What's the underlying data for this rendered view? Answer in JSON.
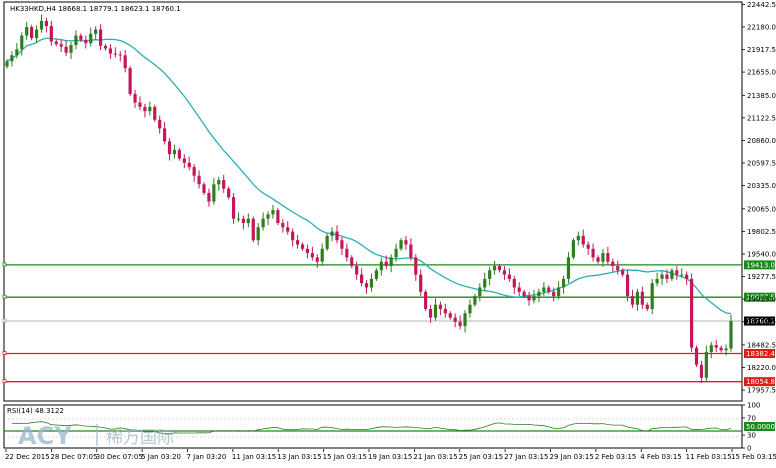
{
  "header": {
    "symbol": "HK33HKD,H4",
    "quote": "18668.1 18779.1 18623.1 18760.1"
  },
  "colors": {
    "bull": "#2e7d1f",
    "bear": "#c2185b",
    "ma": "#26b0b5",
    "support_green": "#1a8a1a",
    "resist_red": "#e01b1b",
    "rsi": "#2e7d1f"
  },
  "chart_data": [
    {
      "type": "candlestick",
      "title": "HK33HKD,H4",
      "ohlc_last": [
        18668.1,
        18779.1,
        18623.1,
        18760.1
      ],
      "ylim": [
        17830,
        22470
      ],
      "y_ticks": [
        "22442.5",
        "22180.0",
        "21917.5",
        "21655.0",
        "21385.0",
        "21122.5",
        "20860.0",
        "20597.5",
        "20335.0",
        "20065.0",
        "19802.5",
        "19540.0",
        "19277.5",
        "19015.0",
        "18752.5",
        "18482.5",
        "18220.0",
        "17957.5"
      ],
      "x_ticks": [
        "22 Dec 2015",
        "28 Dec 07:05",
        "30 Dec 07:05",
        "5 Jan 03:20",
        "7 Jan 03:20",
        "11 Jan 03:15",
        "13 Jan 03:15",
        "15 Jan 03:15",
        "19 Jan 03:15",
        "21 Jan 03:15",
        "25 Jan 03:15",
        "27 Jan 03:15",
        "29 Jan 03:15",
        "2 Feb 03:15",
        "4 Feb 03:15",
        "11 Feb 03:15",
        "15 Feb 03:15"
      ],
      "levels": [
        {
          "value": 19413.0,
          "label": "19413.0",
          "color": "green"
        },
        {
          "value": 19037.5,
          "label": "19037.5",
          "color": "green"
        },
        {
          "value": 18760.1,
          "label": "18760.1",
          "color": "black"
        },
        {
          "value": 18382.4,
          "label": "18382.4",
          "color": "red"
        },
        {
          "value": 18054.8,
          "label": "18054.8",
          "color": "red"
        }
      ],
      "close": [
        21780,
        21850,
        21920,
        22080,
        22180,
        22050,
        22150,
        22250,
        22190,
        22010,
        21980,
        21950,
        21880,
        21970,
        22080,
        22030,
        21990,
        22100,
        22150,
        21960,
        21930,
        21870,
        21860,
        21850,
        21700,
        21400,
        21300,
        21250,
        21200,
        21250,
        21100,
        21000,
        20850,
        20700,
        20750,
        20650,
        20600,
        20550,
        20450,
        20350,
        20250,
        20150,
        20350,
        20400,
        20300,
        20200,
        19950,
        19950,
        19900,
        19950,
        19700,
        19850,
        19950,
        20000,
        20050,
        19900,
        19850,
        19800,
        19700,
        19650,
        19600,
        19550,
        19500,
        19450,
        19600,
        19750,
        19800,
        19700,
        19600,
        19500,
        19400,
        19300,
        19200,
        19150,
        19250,
        19350,
        19450,
        19400,
        19500,
        19600,
        19700,
        19650,
        19500,
        19300,
        19100,
        18900,
        18800,
        18950,
        18900,
        18850,
        18800,
        18750,
        18700,
        18850,
        18950,
        19050,
        19150,
        19250,
        19350,
        19400,
        19350,
        19300,
        19250,
        19150,
        19100,
        19050,
        19000,
        19050,
        19100,
        19150,
        19100,
        19050,
        19150,
        19250,
        19500,
        19700,
        19750,
        19650,
        19600,
        19500,
        19450,
        19550,
        19450,
        19400,
        19350,
        19300,
        19050,
        18950,
        19100,
        18950,
        18900,
        19200,
        19250,
        19300,
        19250,
        19350,
        19300,
        19300,
        19250,
        18450,
        18250,
        18100,
        18400,
        18480,
        18450,
        18420,
        18440,
        18760
      ]
    },
    {
      "type": "line",
      "title": "RSI(14) 48.3122",
      "ylim": [
        0,
        100
      ],
      "y_ticks": [
        "100",
        "70",
        "50.0000",
        "30",
        "0"
      ],
      "levels": [
        {
          "value": 50.0,
          "label": "50.0000"
        }
      ]
    }
  ],
  "watermark": {
    "logo": "ACY",
    "sub": "稀万国际"
  }
}
